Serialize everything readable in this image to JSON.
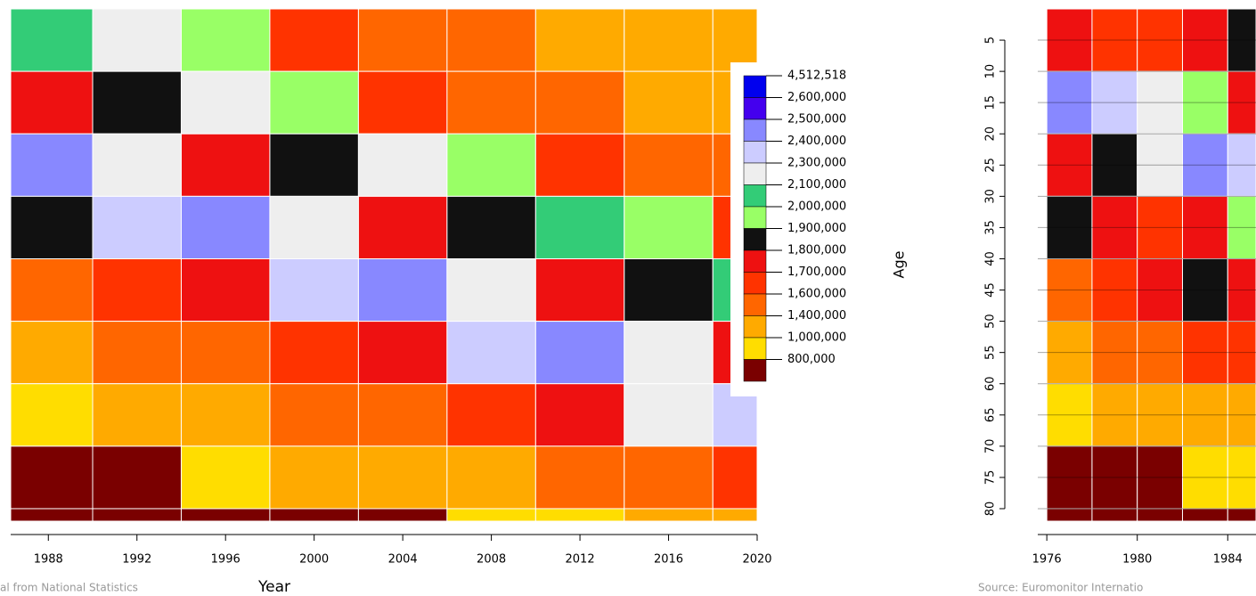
{
  "chart_data": [
    {
      "type": "heatmap",
      "x": [
        1986,
        1990,
        1994,
        1998,
        2002,
        2006,
        2010,
        2014,
        2018
      ],
      "y": [
        0,
        10,
        20,
        30,
        40,
        50,
        60,
        70,
        80
      ],
      "values": [
        [
          2100000,
          2300000,
          2000000,
          1700000,
          1600000,
          1500000,
          1400000,
          1400000,
          1300000
        ],
        [
          1800000,
          1900000,
          2200000,
          2000000,
          1700000,
          1600000,
          1500000,
          1400000,
          1400000
        ],
        [
          2500000,
          2300000,
          1800000,
          1900000,
          2200000,
          2000000,
          1700000,
          1600000,
          1500000
        ],
        [
          1900000,
          2400000,
          2500000,
          2300000,
          1800000,
          1900000,
          2100000,
          2000000,
          1700000
        ],
        [
          1600000,
          1700000,
          1800000,
          2400000,
          2500000,
          2300000,
          1800000,
          1900000,
          2100000
        ],
        [
          1400000,
          1500000,
          1600000,
          1700000,
          1800000,
          2400000,
          2500000,
          2200000,
          1800000
        ],
        [
          1000000,
          1200000,
          1400000,
          1500000,
          1600000,
          1700000,
          1800000,
          2300000,
          2400000
        ],
        [
          800000,
          800000,
          1000000,
          1100000,
          1300000,
          1400000,
          1500000,
          1600000,
          1700000
        ],
        [
          400000,
          500000,
          600000,
          700000,
          800000,
          900000,
          1000000,
          1100000,
          1200000
        ]
      ],
      "xlim": [
        1986.3,
        2020
      ],
      "xticks": [
        1988,
        1992,
        1996,
        2000,
        2004,
        2008,
        2012,
        2016,
        2020
      ],
      "ylim": [
        0,
        82
      ],
      "xlabel": "Year",
      "source": "al from National Statistics",
      "colorscale": [
        {
          "value": 4512518,
          "label": "4,512,518",
          "color": "#0000ee"
        },
        {
          "value": 2600000,
          "label": "2,600,000",
          "color": "#4400ee"
        },
        {
          "value": 2500000,
          "label": "2,500,000",
          "color": "#8888ff"
        },
        {
          "value": 2400000,
          "label": "2,400,000",
          "color": "#ccccff"
        },
        {
          "value": 2300000,
          "label": "2,300,000",
          "color": "#eeeeee"
        },
        {
          "value": 2100000,
          "label": "2,100,000",
          "color": "#33cc77"
        },
        {
          "value": 2000000,
          "label": "2,000,000",
          "color": "#99ff66"
        },
        {
          "value": 1900000,
          "label": "1,900,000",
          "color": "#111111"
        },
        {
          "value": 1800000,
          "label": "1,800,000",
          "color": "#ee1111"
        },
        {
          "value": 1700000,
          "label": "1,700,000",
          "color": "#ff3300"
        },
        {
          "value": 1600000,
          "label": "1,600,000",
          "color": "#ff6600"
        },
        {
          "value": 1400000,
          "label": "1,400,000",
          "color": "#ffaa00"
        },
        {
          "value": 1000000,
          "label": "1,000,000",
          "color": "#ffdd00"
        },
        {
          "value": 800000,
          "label": "800,000",
          "color": "#7a0000"
        }
      ]
    },
    {
      "type": "heatmap",
      "x": [
        1976,
        1978,
        1980,
        1982,
        1984
      ],
      "y": [
        0,
        10,
        20,
        30,
        40,
        50,
        60,
        70,
        80
      ],
      "values": [
        [
          1800000,
          1700000,
          1700000,
          1800000,
          1900000
        ],
        [
          2500000,
          2400000,
          2200000,
          2000000,
          1800000
        ],
        [
          1800000,
          1900000,
          2300000,
          2500000,
          2400000
        ],
        [
          1900000,
          1800000,
          1700000,
          1800000,
          2000000
        ],
        [
          1600000,
          1700000,
          1800000,
          1900000,
          1800000
        ],
        [
          1400000,
          1500000,
          1600000,
          1700000,
          1700000
        ],
        [
          1000000,
          1100000,
          1200000,
          1300000,
          1400000
        ],
        [
          700000,
          800000,
          800000,
          900000,
          1000000
        ],
        [
          300000,
          300000,
          400000,
          400000,
          500000
        ]
      ],
      "xlim": [
        1975.6,
        1985.25
      ],
      "xticks": [
        1976,
        1980,
        1984
      ],
      "ylim": [
        0,
        82
      ],
      "yticks": [
        5,
        10,
        15,
        20,
        25,
        30,
        35,
        40,
        45,
        50,
        55,
        60,
        65,
        70,
        75,
        80
      ],
      "ylabel": "Age",
      "grid": true,
      "source": "Source: Euromonitor Internatio"
    }
  ]
}
